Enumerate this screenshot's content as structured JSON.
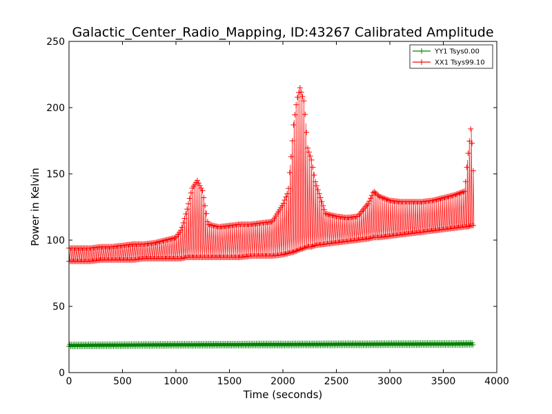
{
  "chart_data": {
    "type": "line",
    "title": "Galactic_Center_Radio_Mapping, ID:43267 Calibrated Amplitude",
    "xlabel": "Time (seconds)",
    "ylabel": "Power in Kelvin",
    "xlim": [
      0,
      4000
    ],
    "ylim": [
      0,
      250
    ],
    "xticks": [
      "0",
      "500",
      "1000",
      "1500",
      "2000",
      "2500",
      "3000",
      "3500",
      "4000"
    ],
    "yticks": [
      "0",
      "50",
      "100",
      "150",
      "200",
      "250"
    ],
    "legend_position": "top-right",
    "grid": false,
    "marker": "+",
    "series": [
      {
        "name": "YY1 Tsys0.00",
        "color": "#008000",
        "x": [
          0,
          200,
          400,
          600,
          800,
          1000,
          1200,
          1400,
          1600,
          1800,
          2000,
          2200,
          2400,
          2600,
          2800,
          3000,
          3200,
          3400,
          3600,
          3780
        ],
        "y": [
          20.5,
          20.6,
          20.7,
          20.8,
          20.9,
          21.0,
          21.0,
          21.1,
          21.1,
          21.2,
          21.2,
          21.3,
          21.3,
          21.4,
          21.4,
          21.5,
          21.5,
          21.6,
          21.6,
          21.7
        ],
        "spread": 0.8
      },
      {
        "name": "XX1 Tsys99.10",
        "color": "#ff0000",
        "x": [
          0,
          100,
          200,
          300,
          400,
          500,
          600,
          700,
          800,
          900,
          1000,
          1050,
          1100,
          1150,
          1200,
          1250,
          1300,
          1400,
          1500,
          1600,
          1700,
          1800,
          1900,
          2000,
          2050,
          2100,
          2130,
          2160,
          2200,
          2230,
          2270,
          2300,
          2400,
          2500,
          2600,
          2700,
          2800,
          2850,
          2900,
          3000,
          3100,
          3200,
          3300,
          3400,
          3500,
          3600,
          3700,
          3730,
          3760,
          3790
        ],
        "y": [
          89,
          89,
          89,
          90,
          90,
          90,
          91,
          91,
          91,
          92,
          92,
          93,
          94,
          95,
          95,
          96,
          96,
          96,
          97,
          97,
          98,
          98,
          99,
          100,
          101,
          102,
          103,
          103,
          104,
          104,
          105,
          105,
          106,
          106,
          107,
          107,
          108,
          108,
          108,
          109,
          109,
          110,
          110,
          111,
          112,
          113,
          113,
          113,
          114,
          114
        ],
        "upper": [
          94,
          94,
          94,
          95,
          95,
          96,
          97,
          97,
          98,
          100,
          102,
          108,
          122,
          139,
          145,
          137,
          112,
          110,
          111,
          112,
          112,
          113,
          114,
          127,
          137,
          187,
          206,
          215,
          204,
          170,
          160,
          145,
          120,
          118,
          117,
          118,
          128,
          137,
          133,
          130,
          129,
          129,
          129,
          130,
          132,
          134,
          137,
          164,
          187,
          135
        ],
        "lower": [
          84,
          84,
          84,
          85,
          85,
          85,
          85,
          86,
          86,
          86,
          86,
          86,
          87,
          87,
          87,
          87,
          87,
          87,
          87,
          87,
          88,
          88,
          88,
          89,
          90,
          91,
          92,
          93,
          94,
          95,
          95,
          96,
          97,
          98,
          99,
          100,
          101,
          102,
          102,
          103,
          104,
          105,
          106,
          107,
          108,
          109,
          110,
          110,
          111,
          111
        ]
      }
    ]
  }
}
